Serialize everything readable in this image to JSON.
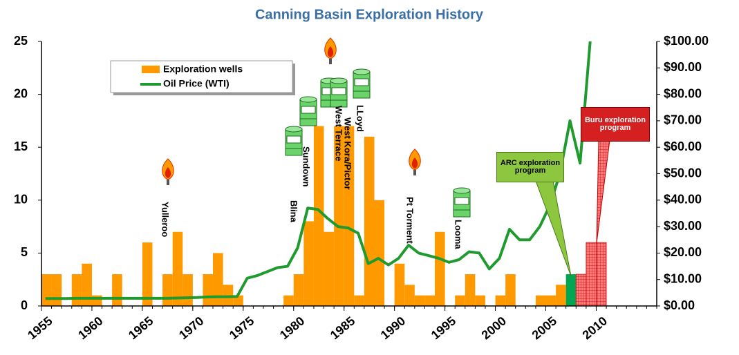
{
  "chart_data": {
    "type": "bar-line",
    "title": "Canning Basin Exploration History",
    "x": [
      1955,
      1956,
      1957,
      1958,
      1959,
      1960,
      1961,
      1962,
      1963,
      1964,
      1965,
      1966,
      1967,
      1968,
      1969,
      1970,
      1971,
      1972,
      1973,
      1974,
      1975,
      1976,
      1977,
      1978,
      1979,
      1980,
      1981,
      1982,
      1983,
      1984,
      1985,
      1986,
      1987,
      1988,
      1989,
      1990,
      1991,
      1992,
      1993,
      1994,
      1995,
      1996,
      1997,
      1998,
      1999,
      2000,
      2001,
      2002,
      2003,
      2004,
      2005,
      2006,
      2007,
      2008,
      2009
    ],
    "series": [
      {
        "name": "Exploration wells",
        "type": "bar",
        "color": "#ff9900",
        "values": [
          3,
          3,
          0,
          3,
          4,
          1,
          0,
          3,
          0,
          0,
          6,
          0,
          3,
          7,
          3,
          0,
          3,
          5,
          2,
          1,
          0,
          0,
          0,
          0,
          1,
          3,
          8,
          17,
          7,
          17,
          17,
          1,
          16,
          10,
          0,
          4,
          2,
          1,
          1,
          7,
          0,
          1,
          3,
          1,
          0,
          1,
          3,
          0,
          0,
          1,
          1,
          2,
          3,
          3,
          6
        ],
        "colors": [
          "#ff9900",
          "#ff9900",
          "#ff9900",
          "#ff9900",
          "#ff9900",
          "#ff9900",
          "#ff9900",
          "#ff9900",
          "#ff9900",
          "#ff9900",
          "#ff9900",
          "#ff9900",
          "#ff9900",
          "#ff9900",
          "#ff9900",
          "#ff9900",
          "#ff9900",
          "#ff9900",
          "#ff9900",
          "#ff9900",
          "#ff9900",
          "#ff9900",
          "#ff9900",
          "#ff9900",
          "#ff9900",
          "#ff9900",
          "#ff9900",
          "#ff9900",
          "#ff9900",
          "#ff9900",
          "#ff9900",
          "#ff9900",
          "#ff9900",
          "#ff9900",
          "#ff9900",
          "#ff9900",
          "#ff9900",
          "#ff9900",
          "#ff9900",
          "#ff9900",
          "#ff9900",
          "#ff9900",
          "#ff9900",
          "#ff9900",
          "#ff9900",
          "#ff9900",
          "#ff9900",
          "#ff9900",
          "#ff9900",
          "#ff9900",
          "#ff9900",
          "#ff9900",
          "#00a651",
          "#ff7a7a",
          "#ff7a7a"
        ]
      },
      {
        "name": "Oil Price (WTI)",
        "type": "line",
        "axis": "y2",
        "color": "#1e9a2e",
        "values": [
          2.8,
          2.8,
          2.8,
          2.9,
          2.9,
          2.9,
          2.9,
          2.9,
          2.9,
          2.9,
          2.9,
          2.9,
          2.9,
          3.0,
          3.1,
          3.2,
          3.4,
          3.5,
          3.5,
          3.6,
          10.5,
          11.5,
          13,
          14.5,
          15,
          22,
          37,
          36.5,
          33,
          30,
          29.5,
          27.5,
          16,
          18,
          15.5,
          18,
          23,
          20,
          19,
          18,
          16.5,
          17.5,
          20.5,
          20,
          14,
          18,
          29,
          25,
          25,
          30,
          38,
          50,
          70,
          54,
          100
        ]
      }
    ],
    "extra_bar": {
      "x": 2010,
      "value": 6,
      "color": "#ff7a7a"
    },
    "xlim": [
      1955,
      2016
    ],
    "xticks": [
      1955,
      1960,
      1965,
      1970,
      1975,
      1980,
      1985,
      1990,
      1995,
      2000,
      2005,
      2010
    ],
    "ylim": [
      0,
      25
    ],
    "yticks": [
      0,
      5,
      10,
      15,
      20,
      25
    ],
    "y2lim": [
      0,
      100
    ],
    "y2ticks": [
      {
        "value": 0,
        "label": "$0.00"
      },
      {
        "value": 10,
        "label": "$10.00"
      },
      {
        "value": 20,
        "label": "$20.00"
      },
      {
        "value": 30,
        "label": "$30.00"
      },
      {
        "value": 40,
        "label": "$40.00"
      },
      {
        "value": 50,
        "label": "$50.00"
      },
      {
        "value": 60,
        "label": "$60.00"
      },
      {
        "value": 70,
        "label": "$70.00"
      },
      {
        "value": 80,
        "label": "$80.00"
      },
      {
        "value": 90,
        "label": "$90.00"
      },
      {
        "value": 100,
        "label": "$100.00"
      }
    ],
    "legend": "upper left",
    "annotations": [
      "Yulleroo",
      "Blina",
      "Sundown",
      "West Terrace",
      "West Kora/Pictor",
      "LLoyd",
      "Pt Torment",
      "Looma"
    ],
    "callouts": [
      "ARC exploration program",
      "Buru exploration program"
    ]
  }
}
